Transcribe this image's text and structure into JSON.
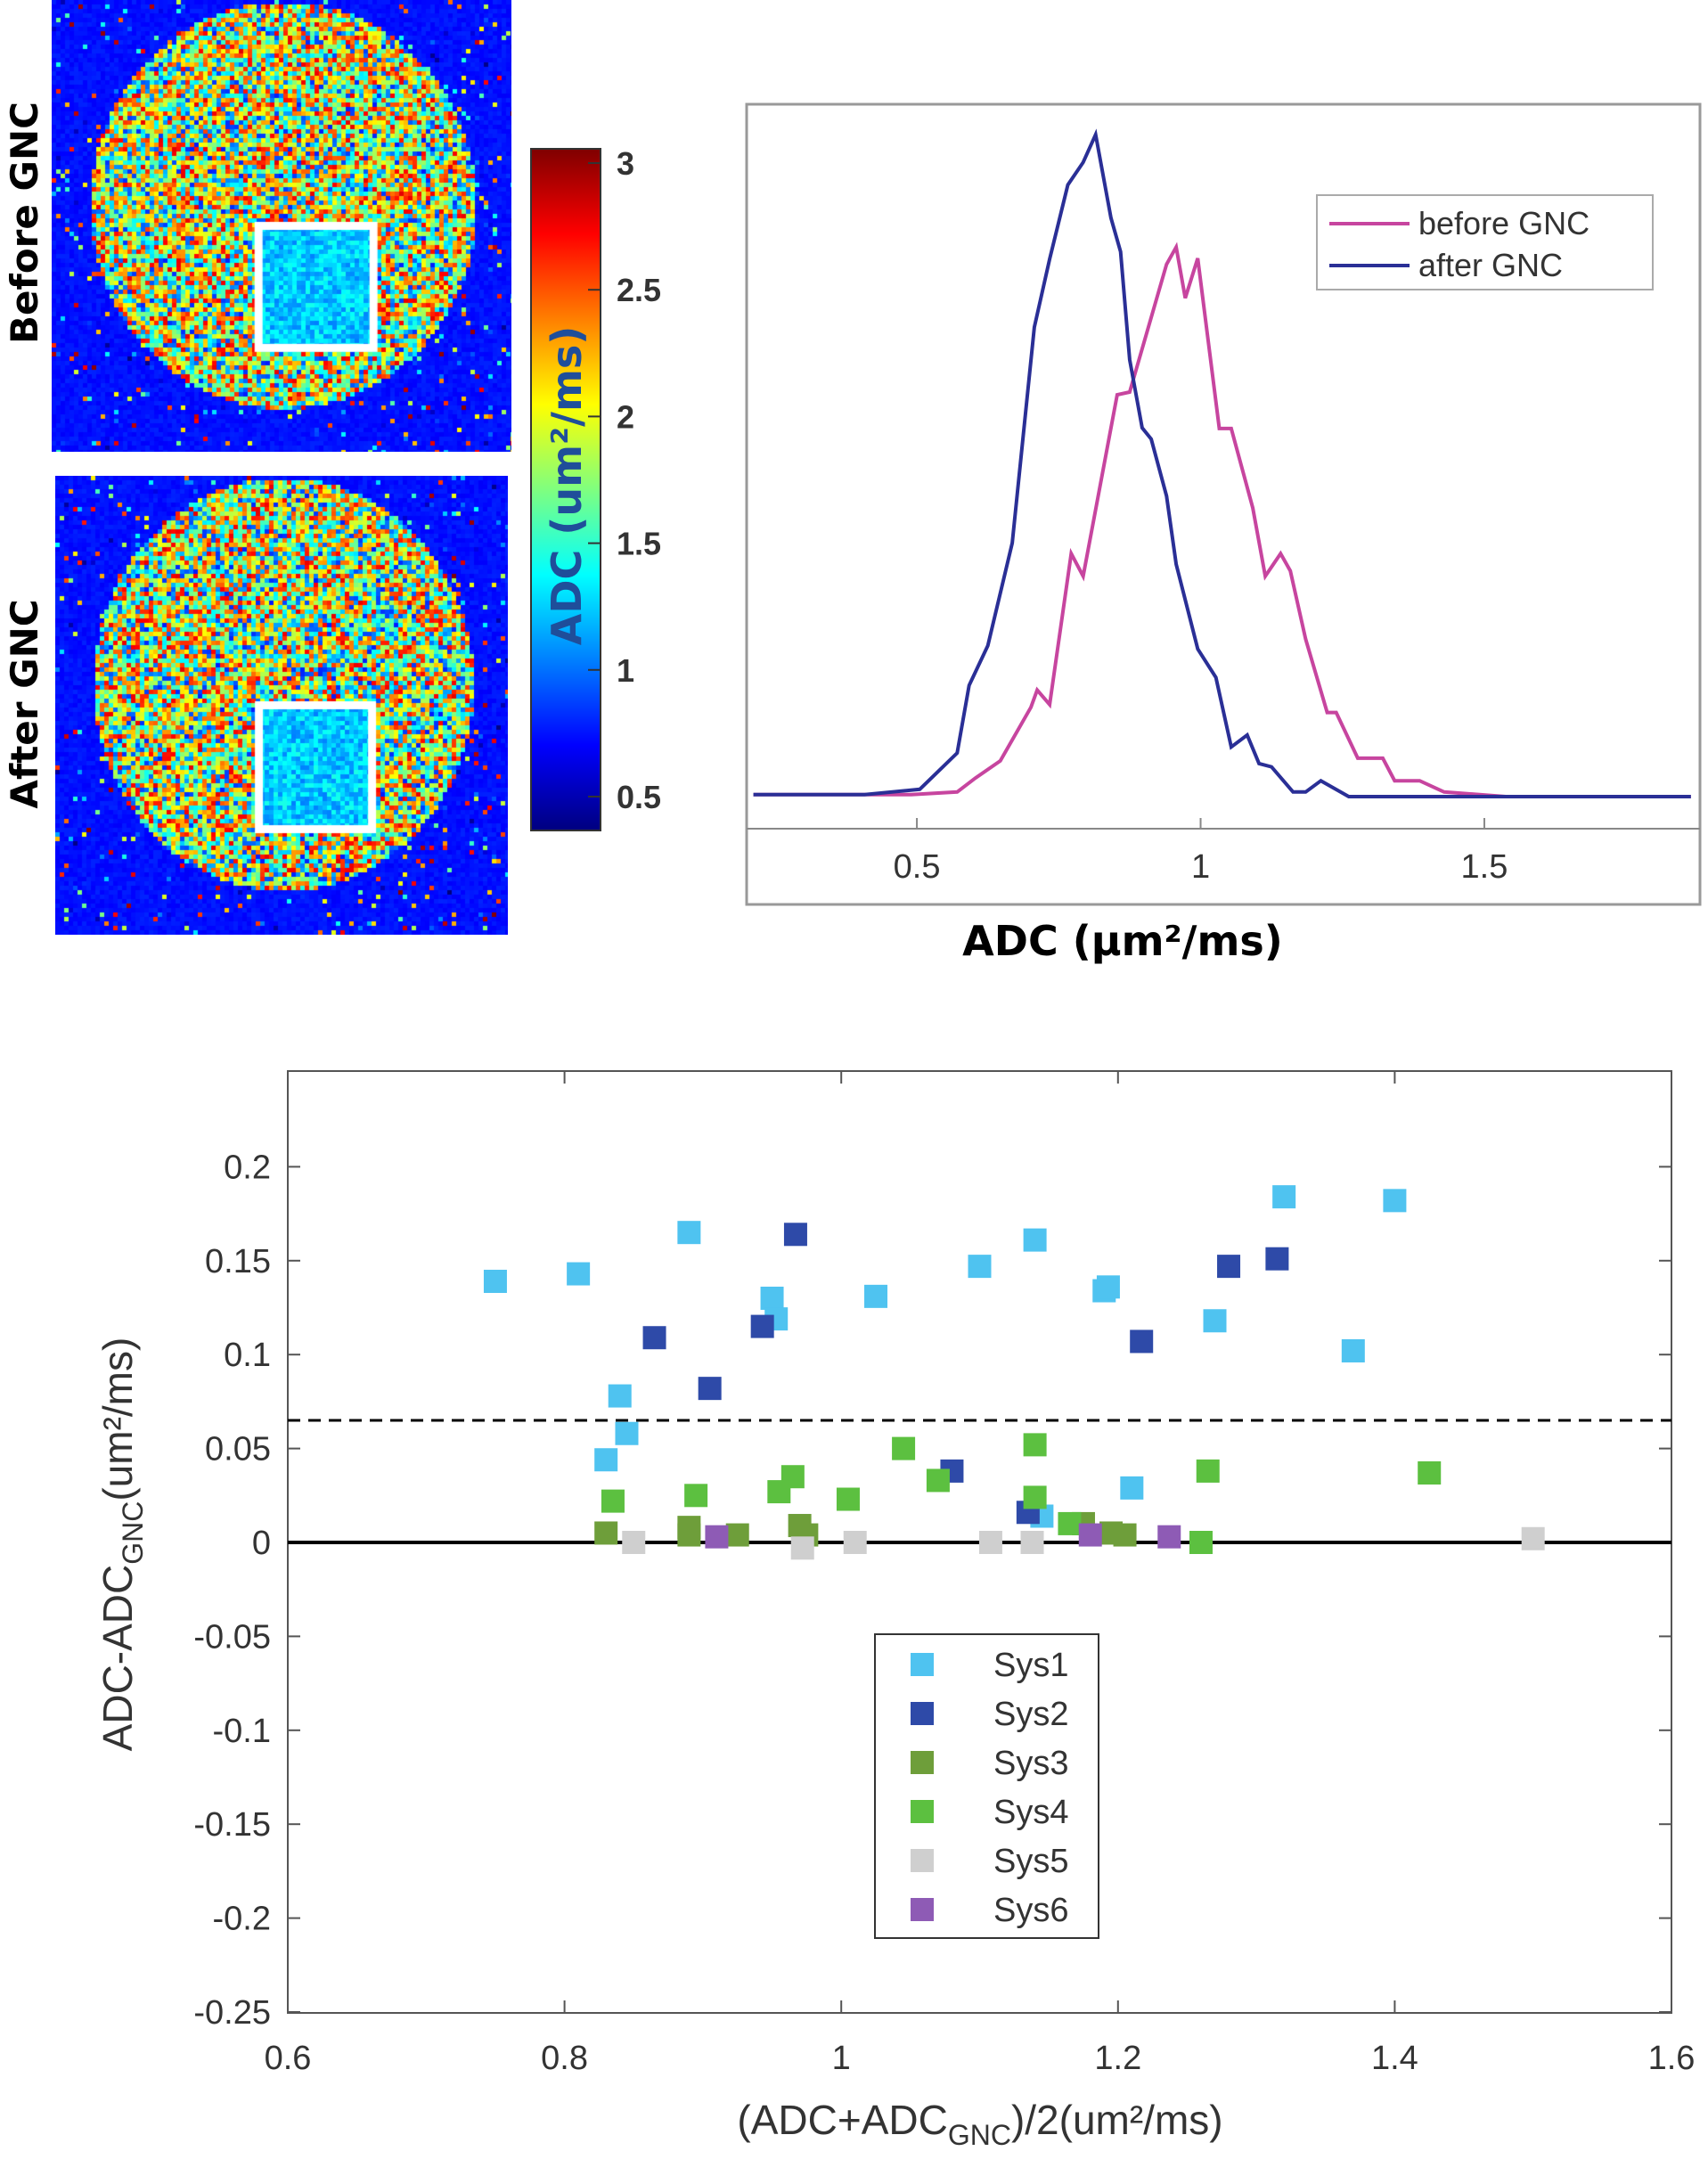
{
  "panels": {
    "before_label": "Before GNC",
    "after_label": "After GNC"
  },
  "colorbar": {
    "label": "ADC (um²/ms)",
    "ticks": [
      0.5,
      1,
      1.5,
      2,
      2.5,
      3
    ],
    "tick_labels": [
      "0.5",
      "1",
      "1.5",
      "2",
      "2.5",
      "3"
    ],
    "colormap": "jet",
    "range": [
      0.5,
      3
    ]
  },
  "chart_data": [
    {
      "type": "line",
      "xlabel": "ADC (μm²/ms)",
      "ylabel": "",
      "xlim": [
        0.2,
        1.88
      ],
      "xticks": [
        0.5,
        1,
        1.5
      ],
      "xtick_labels": [
        "0.5",
        "1",
        "1.5"
      ],
      "yticks": [],
      "legend_placement": "top-right",
      "series": [
        {
          "name": "before GNC",
          "color": "#c7459f",
          "x": [
            0.212,
            0.49,
            0.571,
            0.603,
            0.647,
            0.701,
            0.712,
            0.734,
            0.772,
            0.793,
            0.853,
            0.875,
            0.94,
            0.957,
            0.973,
            0.995,
            1.033,
            1.054,
            1.092,
            1.114,
            1.141,
            1.158,
            1.185,
            1.223,
            1.239,
            1.277,
            1.321,
            1.342,
            1.386,
            1.429,
            1.538,
            1.864
          ],
          "y": [
            0.003,
            0.003,
            0.007,
            0.028,
            0.054,
            0.135,
            0.161,
            0.139,
            0.367,
            0.333,
            0.607,
            0.611,
            0.804,
            0.83,
            0.753,
            0.813,
            0.556,
            0.556,
            0.436,
            0.333,
            0.367,
            0.341,
            0.238,
            0.127,
            0.127,
            0.058,
            0.058,
            0.024,
            0.024,
            0.007,
            0,
            0
          ]
        },
        {
          "name": "after GNC",
          "color": "#2a2f96",
          "x": [
            0.212,
            0.408,
            0.505,
            0.571,
            0.592,
            0.625,
            0.668,
            0.707,
            0.734,
            0.766,
            0.793,
            0.815,
            0.842,
            0.859,
            0.875,
            0.897,
            0.913,
            0.94,
            0.957,
            0.995,
            1.027,
            1.054,
            1.082,
            1.103,
            1.125,
            1.163,
            1.185,
            1.212,
            1.261,
            1.864
          ],
          "y": [
            0.003,
            0.003,
            0.011,
            0.066,
            0.168,
            0.228,
            0.383,
            0.709,
            0.812,
            0.924,
            0.958,
            1.0,
            0.874,
            0.823,
            0.66,
            0.557,
            0.54,
            0.454,
            0.351,
            0.223,
            0.18,
            0.075,
            0.093,
            0.05,
            0.045,
            0.007,
            0.007,
            0.024,
            0,
            0
          ]
        }
      ]
    },
    {
      "type": "scatter",
      "xlabel": "(ADC+ADC",
      "xlabel_sub": "GNC",
      "xlabel_tail": ")/2(um²/ms)",
      "ylabel": "ADC-ADC",
      "ylabel_sub": "GNC",
      "ylabel_tail": "(um²/ms)",
      "xlim": [
        0.6,
        1.6
      ],
      "ylim": [
        -0.25,
        0.25
      ],
      "xticks": [
        0.6,
        0.8,
        1,
        1.2,
        1.4,
        1.6
      ],
      "xtick_labels": [
        "0.6",
        "0.8",
        "1",
        "1.2",
        "1.4",
        "1.6"
      ],
      "yticks": [
        0.2,
        0.15,
        0.1,
        0.05,
        0,
        -0.05,
        -0.1,
        -0.15,
        -0.2,
        -0.25
      ],
      "ytick_labels": [
        "0.2",
        "0.15",
        "0.1",
        "0.05",
        "0",
        "-0.05",
        "-0.1",
        "-0.15",
        "-0.2",
        "-0.25"
      ],
      "reference_lines": [
        {
          "y": 0,
          "style": "solid"
        },
        {
          "y": 0.065,
          "style": "dashed"
        }
      ],
      "legend_placement": "lower-center",
      "grid": false,
      "series": [
        {
          "name": "Sys1",
          "color": "#4fc3f0",
          "points": [
            [
              0.75,
              0.139
            ],
            [
              0.81,
              0.143
            ],
            [
              0.89,
              0.165
            ],
            [
              0.95,
              0.13
            ],
            [
              0.953,
              0.119
            ],
            [
              1.025,
              0.131
            ],
            [
              1.1,
              0.147
            ],
            [
              1.14,
              0.161
            ],
            [
              1.19,
              0.134
            ],
            [
              1.193,
              0.136
            ],
            [
              1.27,
              0.118
            ],
            [
              1.32,
              0.184
            ],
            [
              1.4,
              0.182
            ],
            [
              1.37,
              0.102
            ],
            [
              1.21,
              0.029
            ],
            [
              0.84,
              0.078
            ],
            [
              0.845,
              0.058
            ],
            [
              0.83,
              0.044
            ],
            [
              1.145,
              0.014
            ]
          ]
        },
        {
          "name": "Sys2",
          "color": "#2e4aa8",
          "points": [
            [
              0.865,
              0.109
            ],
            [
              0.967,
              0.164
            ],
            [
              0.943,
              0.115
            ],
            [
              0.905,
              0.082
            ],
            [
              1.08,
              0.038
            ],
            [
              1.135,
              0.016
            ],
            [
              1.217,
              0.107
            ],
            [
              1.28,
              0.147
            ],
            [
              1.315,
              0.151
            ]
          ]
        },
        {
          "name": "Sys3",
          "color": "#6e9e3a",
          "points": [
            [
              0.83,
              0.005
            ],
            [
              0.89,
              0.008
            ],
            [
              0.925,
              0.004
            ],
            [
              0.97,
              0.009
            ],
            [
              0.975,
              0.004
            ],
            [
              1.175,
              0.01
            ],
            [
              1.195,
              0.005
            ],
            [
              1.205,
              0.004
            ],
            [
              0.89,
              0.004
            ]
          ]
        },
        {
          "name": "Sys4",
          "color": "#5cc040",
          "points": [
            [
              0.835,
              0.022
            ],
            [
              0.895,
              0.025
            ],
            [
              0.955,
              0.027
            ],
            [
              0.965,
              0.035
            ],
            [
              1.005,
              0.023
            ],
            [
              1.045,
              0.05
            ],
            [
              1.07,
              0.033
            ],
            [
              1.14,
              0.052
            ],
            [
              1.14,
              0.024
            ],
            [
              1.165,
              0.01
            ],
            [
              1.265,
              0.038
            ],
            [
              1.26,
              0.0
            ],
            [
              1.425,
              0.037
            ]
          ]
        },
        {
          "name": "Sys5",
          "color": "#cfcfcf",
          "points": [
            [
              0.85,
              0
            ],
            [
              0.972,
              -0.003
            ],
            [
              1.01,
              0
            ],
            [
              1.108,
              0
            ],
            [
              1.138,
              0
            ],
            [
              1.5,
              0.002
            ]
          ]
        },
        {
          "name": "Sys6",
          "color": "#8e5bb5",
          "points": [
            [
              0.91,
              0.003
            ],
            [
              1.18,
              0.004
            ],
            [
              1.237,
              0.003
            ]
          ]
        }
      ]
    }
  ]
}
